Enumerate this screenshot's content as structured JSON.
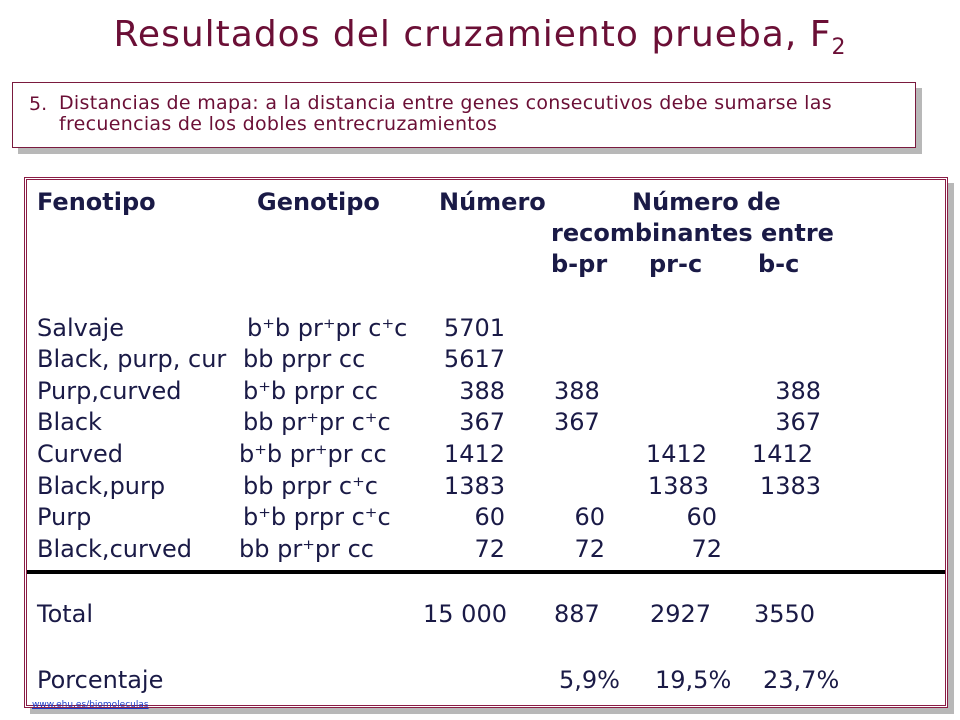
{
  "title": {
    "main": "Resultados del cruzamiento prueba, F",
    "sub": "2"
  },
  "note": {
    "number": "5.",
    "text": "Distancias de mapa: a la distancia entre genes consecutivos debe sumarse las frecuencias de los dobles entrecruzamientos"
  },
  "table": {
    "headers": {
      "fenotipo": "Fenotipo",
      "genotipo": "Genotipo",
      "numero": "Número",
      "numero_de": "Número de",
      "recombinantes": "recombinantes entre",
      "bpr": "b-pr",
      "prc": "pr-c",
      "bc": "b-c"
    },
    "rows": [
      {
        "fenotipo": "Salvaje",
        "genotipo": "b⁺b pr⁺pr c⁺c",
        "numero": "5701",
        "bpr": "",
        "prc": "",
        "bc": ""
      },
      {
        "fenotipo": "Black, purp, cur",
        "genotipo": "bb prpr cc",
        "numero": "5617",
        "bpr": "",
        "prc": "",
        "bc": ""
      },
      {
        "fenotipo": "Purp,curved",
        "genotipo": "b⁺b prpr cc",
        "numero": "388",
        "bpr": "388",
        "prc": "",
        "bc": "388"
      },
      {
        "fenotipo": "Black",
        "genotipo": "bb pr⁺pr c⁺c",
        "numero": "367",
        "bpr": "367",
        "prc": "",
        "bc": "367"
      },
      {
        "fenotipo": "Curved",
        "genotipo": "b⁺b pr⁺pr cc",
        "numero": "1412",
        "bpr": "",
        "prc": "1412",
        "bc": "1412"
      },
      {
        "fenotipo": "Black,purp",
        "genotipo": "bb prpr c⁺c",
        "numero": "1383",
        "bpr": "",
        "prc": "1383",
        "bc": "1383"
      },
      {
        "fenotipo": "Purp",
        "genotipo": "b⁺b prpr c⁺c",
        "numero": "60",
        "bpr": "60",
        "prc": "60",
        "bc": ""
      },
      {
        "fenotipo": "Black,curved",
        "genotipo": "bb pr⁺pr cc",
        "numero": "72",
        "bpr": "72",
        "prc": "72",
        "bc": ""
      }
    ],
    "total": {
      "label": "Total",
      "numero": "15 000",
      "bpr": "887",
      "prc": "2927",
      "bc": "3550"
    },
    "porcentaje": {
      "label": "Porcentaje",
      "bpr": "5,9%",
      "prc": "19,5%",
      "bc": "23,7%"
    }
  },
  "footer": {
    "link_text": "www.ehu.es/biomoleculas"
  }
}
